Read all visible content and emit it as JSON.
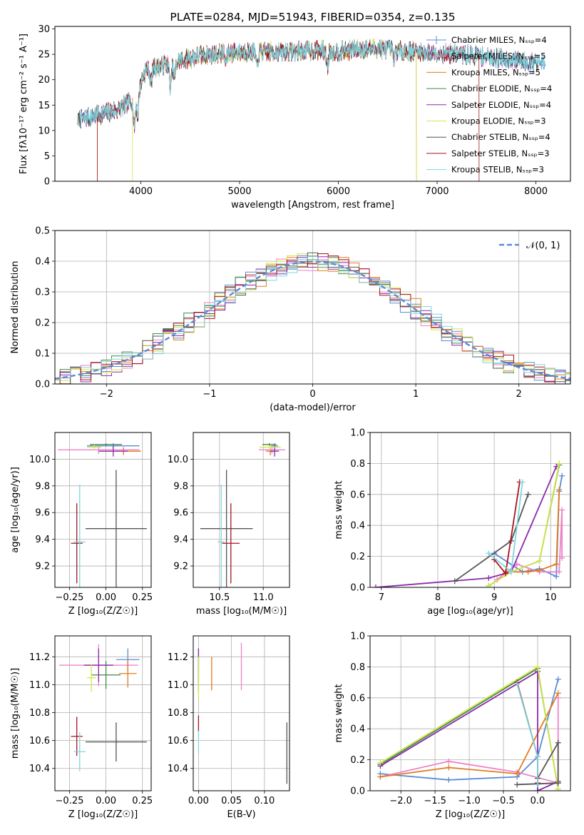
{
  "chart_data": [
    {
      "id": "spectrum",
      "type": "line",
      "title": "PLATE=0284, MJD=51943, FIBERID=0354, z=0.135",
      "xlabel": "wavelength [Angstrom, rest frame]",
      "ylabel": "Flux [fλ10⁻¹⁷ erg cm⁻² s⁻¹ A⁻¹]",
      "xlim": [
        3130,
        8350
      ],
      "ylim": [
        0,
        30.5
      ],
      "xticks": [
        4000,
        5000,
        6000,
        7000,
        8000
      ],
      "yticks": [
        0,
        5,
        10,
        15,
        20,
        25,
        30
      ],
      "grid": false,
      "legend": "upper-right",
      "series": [
        {
          "name": "Chabrier MILES, Nₛₛₚ=4",
          "color": "#5b8bd6"
        },
        {
          "name": "Salpeter MILES, Nₛₛₚ=5",
          "color": "#ee82c8"
        },
        {
          "name": "Kroupa MILES, Nₛₛₚ=5",
          "color": "#e07b1d"
        },
        {
          "name": "Chabrier ELODIE, Nₛₛₚ=4",
          "color": "#3f8a48"
        },
        {
          "name": "Salpeter ELODIE, Nₛₛₚ=4",
          "color": "#8b2aa8"
        },
        {
          "name": "Kroupa ELODIE, Nₛₛₚ=3",
          "color": "#d5e64a"
        },
        {
          "name": "Chabrier STELIB, Nₛₛₚ=4",
          "color": "#555555"
        },
        {
          "name": "Salpeter STELIB, Nₛₛₚ=3",
          "color": "#a8141c"
        },
        {
          "name": "Kroupa STELIB, Nₛₛₚ=3",
          "color": "#7fd6df"
        }
      ],
      "continuum": {
        "x": [
          3350,
          3450,
          3550,
          3650,
          3750,
          3850,
          3950,
          4050,
          4150,
          4250,
          4350,
          4450,
          4550,
          4650,
          4750,
          4850,
          5000,
          5200,
          5400,
          5600,
          5800,
          6000,
          6200,
          6400,
          6600,
          6800,
          7000,
          7200,
          7400,
          7600,
          7800,
          8000,
          8100
        ],
        "y": [
          12,
          12.5,
          13,
          13.5,
          14,
          15,
          17,
          22,
          22.5,
          23,
          23.5,
          24,
          24.5,
          25,
          25,
          25.3,
          25.5,
          25.5,
          25.5,
          25.6,
          25.8,
          25.5,
          26,
          26.2,
          25.8,
          25.5,
          25.3,
          25,
          24.8,
          24.3,
          23.8,
          23.3,
          23
        ]
      },
      "absorption_features": [
        {
          "x": 3934,
          "depth": 6
        },
        {
          "x": 3969,
          "depth": 5
        },
        {
          "x": 4102,
          "depth": 3
        },
        {
          "x": 4300,
          "depth": 5
        },
        {
          "x": 4340,
          "depth": 3
        },
        {
          "x": 4861,
          "depth": 2
        },
        {
          "x": 5175,
          "depth": 3
        },
        {
          "x": 5890,
          "depth": 3
        },
        {
          "x": 6563,
          "depth": 2
        }
      ],
      "edge_drops": [
        {
          "series": 7,
          "x": 3560
        },
        {
          "series": 2,
          "x": 3560
        },
        {
          "series": 5,
          "x": 3915
        },
        {
          "series": 5,
          "x": 6790
        },
        {
          "series": 2,
          "x": 6790
        },
        {
          "series": 7,
          "x": 7425
        },
        {
          "series": 2,
          "x": 7425
        }
      ]
    },
    {
      "id": "residuals",
      "type": "line",
      "xlabel": "(data-model)/error",
      "ylabel": "Normed distribution",
      "xlim": [
        -2.5,
        2.5
      ],
      "ylim": [
        0,
        0.5
      ],
      "xticks": [
        -2,
        -1,
        0,
        1,
        2
      ],
      "yticks": [
        0.0,
        0.1,
        0.2,
        0.3,
        0.4,
        0.5
      ],
      "grid": true,
      "legend": "upper-right",
      "reference": {
        "name": "𝒩(0, 1)",
        "color": "#5b8bd6",
        "style": "dashed",
        "mean": 0,
        "sigma": 1
      },
      "bin_width": 0.1
    },
    {
      "id": "age-vs-z",
      "type": "scatter",
      "xlabel": "Z [log₁₀(Z/Z☉)]",
      "ylabel": "age  [log₁₀(age/yr)]",
      "xlim": [
        -0.35,
        0.31
      ],
      "ylim": [
        9.04,
        10.2
      ],
      "xticks": [
        -0.25,
        0.0,
        0.25
      ],
      "yticks": [
        9.2,
        9.4,
        9.6,
        9.8,
        10.0
      ],
      "grid": true,
      "points": [
        {
          "s": 0,
          "x": 0.05,
          "y": 10.1,
          "ex": 0.18,
          "ey": 0.02
        },
        {
          "s": 1,
          "x": -0.05,
          "y": 10.07,
          "ex": 0.28,
          "ey": 0.03
        },
        {
          "s": 2,
          "x": 0.12,
          "y": 10.06,
          "ex": 0.12,
          "ey": 0.03
        },
        {
          "s": 3,
          "x": 0.0,
          "y": 10.11,
          "ex": 0.11,
          "ey": 0.01
        },
        {
          "s": 4,
          "x": 0.05,
          "y": 10.06,
          "ex": 0.1,
          "ey": 0.04
        },
        {
          "s": 5,
          "x": -0.08,
          "y": 10.09,
          "ex": 0.05,
          "ey": 0.02
        },
        {
          "s": 6,
          "x": 0.07,
          "y": 9.48,
          "ex": 0.21,
          "ey": 0.44
        },
        {
          "s": 7,
          "x": -0.2,
          "y": 9.37,
          "ex": 0.04,
          "ey": 0.3
        },
        {
          "s": 8,
          "x": -0.18,
          "y": 9.38,
          "ex": 0.04,
          "ey": 0.43
        }
      ]
    },
    {
      "id": "age-vs-mass",
      "type": "scatter",
      "xlabel": "mass [log₁₀(M/M☉)]",
      "ylabel": "",
      "xlim": [
        10.2,
        11.3
      ],
      "ylim": [
        9.04,
        10.2
      ],
      "xticks": [
        10.5,
        11.0
      ],
      "yticks": [
        9.2,
        9.4,
        9.6,
        9.8,
        10.0
      ],
      "grid": true,
      "points": [
        {
          "s": 0,
          "x": 11.13,
          "y": 10.1,
          "ex": 0.04,
          "ey": 0.02
        },
        {
          "s": 1,
          "x": 11.1,
          "y": 10.07,
          "ex": 0.15,
          "ey": 0.03
        },
        {
          "s": 2,
          "x": 11.08,
          "y": 10.06,
          "ex": 0.05,
          "ey": 0.03
        },
        {
          "s": 3,
          "x": 11.07,
          "y": 10.11,
          "ex": 0.08,
          "ey": 0.01
        },
        {
          "s": 4,
          "x": 11.13,
          "y": 10.06,
          "ex": 0.05,
          "ey": 0.04
        },
        {
          "s": 5,
          "x": 11.08,
          "y": 10.09,
          "ex": 0.12,
          "ey": 0.02
        },
        {
          "s": 6,
          "x": 10.58,
          "y": 9.48,
          "ex": 0.3,
          "ey": 0.44
        },
        {
          "s": 7,
          "x": 10.63,
          "y": 9.37,
          "ex": 0.1,
          "ey": 0.3
        },
        {
          "s": 8,
          "x": 10.52,
          "y": 9.38,
          "ex": 0.04,
          "ey": 0.43
        }
      ]
    },
    {
      "id": "weight-vs-age",
      "type": "line",
      "xlabel": "age  [log₁₀(age/yr)]",
      "ylabel": "mass weight",
      "xlim": [
        6.8,
        10.35
      ],
      "ylim": [
        0,
        1.0
      ],
      "xticks": [
        7,
        8,
        9,
        10
      ],
      "yticks": [
        0.0,
        0.2,
        0.4,
        0.6,
        0.8,
        1.0
      ],
      "grid": true,
      "series": [
        {
          "s": 0,
          "x": [
            9.0,
            9.5,
            9.8,
            10.1,
            10.15,
            10.2
          ],
          "y": [
            0.22,
            0.1,
            0.12,
            0.07,
            0.62,
            0.72
          ]
        },
        {
          "s": 1,
          "x": [
            9.05,
            9.4,
            9.8,
            10.15,
            10.2,
            10.2
          ],
          "y": [
            0.05,
            0.15,
            0.1,
            0.1,
            0.5,
            0.19
          ]
        },
        {
          "s": 2,
          "x": [
            9.2,
            9.6,
            9.8,
            10.1,
            10.15
          ],
          "y": [
            0.1,
            0.1,
            0.11,
            0.15,
            0.63
          ]
        },
        {
          "s": 3,
          "x": [
            8.9,
            9.3,
            9.8,
            10.15
          ],
          "y": [
            0.01,
            0.1,
            0.17,
            0.79
          ]
        },
        {
          "s": 4,
          "x": [
            6.9,
            8.9,
            9.3,
            10.1
          ],
          "y": [
            0.0,
            0.06,
            0.1,
            0.78
          ]
        },
        {
          "s": 5,
          "x": [
            8.9,
            9.3,
            9.8,
            10.15
          ],
          "y": [
            0.01,
            0.1,
            0.17,
            0.8
          ]
        },
        {
          "s": 6,
          "x": [
            8.3,
            9.3,
            9.6
          ],
          "y": [
            0.04,
            0.3,
            0.6
          ]
        },
        {
          "s": 7,
          "x": [
            9.0,
            9.2,
            9.45
          ],
          "y": [
            0.18,
            0.09,
            0.68
          ]
        },
        {
          "s": 8,
          "x": [
            8.9,
            9.3,
            9.5
          ],
          "y": [
            0.22,
            0.1,
            0.68
          ]
        }
      ]
    },
    {
      "id": "mass-vs-z",
      "type": "scatter",
      "xlabel": "Z [log₁₀(Z/Z☉)]",
      "ylabel": "mass [log₁₀(M/M☉)]",
      "xlim": [
        -0.35,
        0.31
      ],
      "ylim": [
        10.24,
        11.35
      ],
      "xticks": [
        -0.25,
        0.0,
        0.25
      ],
      "yticks": [
        10.4,
        10.6,
        10.8,
        11.0,
        11.2
      ],
      "grid": true,
      "points": [
        {
          "s": 0,
          "x": 0.15,
          "y": 11.18,
          "ex": 0.08,
          "ey": 0.08
        },
        {
          "s": 1,
          "x": -0.05,
          "y": 11.14,
          "ex": 0.27,
          "ey": 0.15
        },
        {
          "s": 2,
          "x": 0.15,
          "y": 11.08,
          "ex": 0.06,
          "ey": 0.1
        },
        {
          "s": 3,
          "x": 0.0,
          "y": 11.07,
          "ex": 0.1,
          "ey": 0.1
        },
        {
          "s": 4,
          "x": -0.05,
          "y": 11.14,
          "ex": 0.1,
          "ey": 0.12
        },
        {
          "s": 5,
          "x": -0.1,
          "y": 11.05,
          "ex": 0.03,
          "ey": 0.1
        },
        {
          "s": 6,
          "x": 0.07,
          "y": 10.59,
          "ex": 0.21,
          "ey": 0.14
        },
        {
          "s": 7,
          "x": -0.2,
          "y": 10.63,
          "ex": 0.04,
          "ey": 0.14
        },
        {
          "s": 8,
          "x": -0.18,
          "y": 10.52,
          "ex": 0.04,
          "ey": 0.14
        }
      ]
    },
    {
      "id": "mass-vs-ebv",
      "type": "scatter",
      "xlabel": "E(B-V)",
      "ylabel": "",
      "xlim": [
        -0.008,
        0.138
      ],
      "ylim": [
        10.24,
        11.35
      ],
      "xticks": [
        0.0,
        0.05,
        0.1
      ],
      "tick_labels": [
        "0.00",
        "0.05",
        "0.10"
      ],
      "yticks": [
        10.4,
        10.6,
        10.8,
        11.0,
        11.2
      ],
      "grid": true,
      "points": [
        {
          "s": 0,
          "x": 0.0,
          "y": 11.18,
          "ex": 0,
          "ey": 0.08
        },
        {
          "s": 1,
          "x": 0.065,
          "y": 11.13,
          "ex": 0,
          "ey": 0.17
        },
        {
          "s": 2,
          "x": 0.02,
          "y": 11.08,
          "ex": 0,
          "ey": 0.12
        },
        {
          "s": 3,
          "x": 0.0,
          "y": 11.07,
          "ex": 0,
          "ey": 0.12
        },
        {
          "s": 4,
          "x": 0.0,
          "y": 11.14,
          "ex": 0,
          "ey": 0.12
        },
        {
          "s": 5,
          "x": 0.0,
          "y": 11.05,
          "ex": 0,
          "ey": 0.15
        },
        {
          "s": 6,
          "x": 0.134,
          "y": 10.51,
          "ex": 0,
          "ey": 0.22
        },
        {
          "s": 7,
          "x": 0.0,
          "y": 10.72,
          "ex": 0,
          "ey": 0.06
        },
        {
          "s": 8,
          "x": 0.0,
          "y": 10.59,
          "ex": 0,
          "ey": 0.08
        }
      ]
    },
    {
      "id": "weight-vs-z",
      "type": "line",
      "xlabel": "Z [log₁₀(Z/Z☉)]",
      "ylabel": "mass weight",
      "xlim": [
        -2.45,
        0.48
      ],
      "ylim": [
        0,
        1.0
      ],
      "xticks": [
        -2.0,
        -1.5,
        -1.0,
        -0.5,
        0.0
      ],
      "yticks": [
        0.0,
        0.2,
        0.4,
        0.6,
        0.8,
        1.0
      ],
      "grid": true,
      "series": [
        {
          "s": 0,
          "x": [
            -2.3,
            -1.3,
            -0.3,
            0.0,
            0.3
          ],
          "y": [
            0.11,
            0.07,
            0.09,
            0.22,
            0.72
          ]
        },
        {
          "s": 1,
          "x": [
            -2.3,
            -1.3,
            -0.3,
            0.3,
            0.3
          ],
          "y": [
            0.09,
            0.19,
            0.12,
            0.05,
            0.6
          ]
        },
        {
          "s": 2,
          "x": [
            -2.3,
            -1.3,
            -0.3,
            0.3
          ],
          "y": [
            0.09,
            0.15,
            0.11,
            0.63
          ]
        },
        {
          "s": 3,
          "x": [
            -2.3,
            0.0,
            0.3
          ],
          "y": [
            0.17,
            0.79,
            0.01
          ]
        },
        {
          "s": 4,
          "x": [
            -2.3,
            0.0,
            0.0,
            0.3
          ],
          "y": [
            0.16,
            0.77,
            0.0,
            0.06
          ]
        },
        {
          "s": 5,
          "x": [
            -2.3,
            0.0,
            0.3
          ],
          "y": [
            0.18,
            0.8,
            0.01
          ]
        },
        {
          "s": 6,
          "x": [
            -0.3,
            0.3,
            0.3,
            0.0
          ],
          "y": [
            0.04,
            0.05,
            0.31,
            0.08
          ]
        },
        {
          "s": 7,
          "x": [
            -0.3,
            0.0,
            0.0
          ],
          "y": [
            0.7,
            0.22,
            0.05
          ]
        },
        {
          "s": 8,
          "x": [
            -0.3,
            0.0,
            0.0
          ],
          "y": [
            0.69,
            0.22,
            0.04
          ]
        }
      ]
    }
  ]
}
